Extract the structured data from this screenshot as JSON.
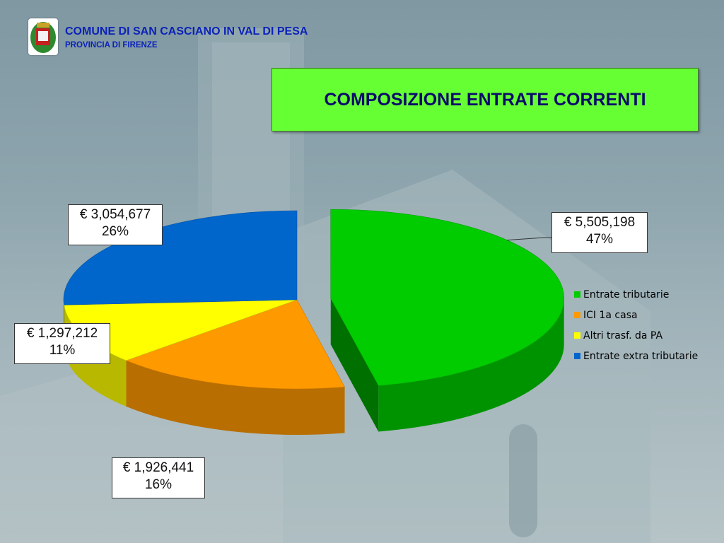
{
  "header": {
    "comune": "COMUNE DI SAN CASCIANO IN VAL DI PESA",
    "provincia": "PROVINCIA  DI FIRENZE"
  },
  "chart_data": {
    "type": "pie",
    "title": "COMPOSIZIONE  ENTRATE CORRENTI",
    "slices": [
      {
        "name": "Entrate tributarie",
        "value": 5505198,
        "value_label": "€ 5,505,198",
        "percent_label": "47%",
        "color": "#00cc00"
      },
      {
        "name": "ICI 1a casa",
        "value": 1926441,
        "value_label": "€ 1,926,441",
        "percent_label": "16%",
        "color": "#ff9900"
      },
      {
        "name": "Altri trasf. da PA",
        "value": 1297212,
        "value_label": "€ 1,297,212",
        "percent_label": "11%",
        "color": "#ffff00"
      },
      {
        "name": "Entrate extra tributarie",
        "value": 3054677,
        "value_label": "€ 3,054,677",
        "percent_label": "26%",
        "color": "#0066cc"
      }
    ],
    "legend_position": "right",
    "exploded_slice": "Entrate tributarie",
    "three_d": true
  }
}
